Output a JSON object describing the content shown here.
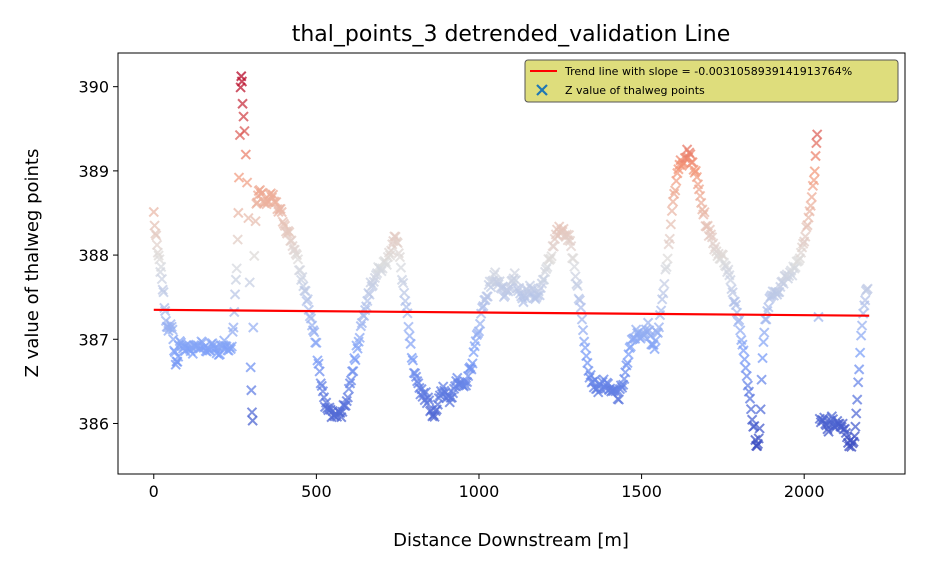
{
  "chart_data": {
    "type": "scatter",
    "title": "thal_points_3 detrended_validation Line",
    "xlabel": "Distance Downstream [m]",
    "ylabel": "Z value of thalweg points",
    "xlim": [
      -110,
      2310
    ],
    "ylim": [
      385.4,
      390.4
    ],
    "xticks": [
      {
        "value": 0,
        "label": "0"
      },
      {
        "value": 500,
        "label": "500"
      },
      {
        "value": 1000,
        "label": "1000"
      },
      {
        "value": 1500,
        "label": "1500"
      },
      {
        "value": 2000,
        "label": "2000"
      }
    ],
    "yticks": [
      {
        "value": 386,
        "label": "386"
      },
      {
        "value": 387,
        "label": "387"
      },
      {
        "value": 388,
        "label": "388"
      },
      {
        "value": 389,
        "label": "389"
      },
      {
        "value": 390,
        "label": "390"
      }
    ],
    "grid": false,
    "legend": {
      "position": "top-right",
      "background": "#dedd7c",
      "entries": [
        {
          "label": "Trend line with slope = -0.0031058939141913764%",
          "marker": "line",
          "color": "#ff0000"
        },
        {
          "label": "Z value of thalweg points",
          "marker": "x",
          "color": "#1f77b4"
        }
      ]
    },
    "colormap": {
      "name": "coolwarm",
      "vmin": 385.7,
      "vmax": 390.15
    },
    "trend_line": {
      "color": "#ff0000",
      "x": [
        0,
        2200
      ],
      "y": [
        387.35,
        387.28
      ]
    },
    "profile_points": [
      [
        0,
        388.5
      ],
      [
        5,
        388.25
      ],
      [
        10,
        388.1
      ],
      [
        15,
        387.95
      ],
      [
        20,
        387.85
      ],
      [
        25,
        387.75
      ],
      [
        30,
        387.5
      ],
      [
        35,
        387.35
      ],
      [
        40,
        387.2
      ],
      [
        45,
        387.05
      ],
      [
        55,
        387.2
      ],
      [
        60,
        387.0
      ],
      [
        65,
        386.8
      ],
      [
        70,
        386.7
      ],
      [
        75,
        386.85
      ],
      [
        80,
        386.95
      ],
      [
        90,
        386.85
      ],
      [
        100,
        386.95
      ],
      [
        110,
        386.9
      ],
      [
        120,
        386.85
      ],
      [
        130,
        386.95
      ],
      [
        140,
        386.9
      ],
      [
        150,
        386.95
      ],
      [
        160,
        386.85
      ],
      [
        170,
        386.9
      ],
      [
        180,
        386.95
      ],
      [
        190,
        386.9
      ],
      [
        200,
        386.85
      ],
      [
        210,
        386.9
      ],
      [
        220,
        386.95
      ],
      [
        230,
        386.85
      ],
      [
        240,
        386.95
      ],
      [
        245,
        387.2
      ],
      [
        250,
        387.5
      ],
      [
        255,
        387.85
      ],
      [
        258,
        388.2
      ],
      [
        260,
        388.5
      ],
      [
        262,
        388.95
      ],
      [
        265,
        389.45
      ],
      [
        267,
        389.95
      ],
      [
        269,
        390.15
      ],
      [
        271,
        390.05
      ],
      [
        273,
        389.85
      ],
      [
        276,
        389.6
      ],
      [
        279,
        389.45
      ],
      [
        283,
        389.2
      ],
      [
        287,
        388.9
      ],
      [
        291,
        388.4
      ],
      [
        295,
        387.7
      ],
      [
        298,
        386.7
      ],
      [
        300,
        386.4
      ],
      [
        302,
        386.1
      ],
      [
        304,
        386.05
      ],
      [
        306,
        387.2
      ],
      [
        309,
        388.0
      ],
      [
        313,
        388.45
      ],
      [
        318,
        388.65
      ],
      [
        323,
        388.75
      ],
      [
        330,
        388.7
      ],
      [
        340,
        388.65
      ],
      [
        350,
        388.6
      ],
      [
        360,
        388.7
      ],
      [
        370,
        388.65
      ],
      [
        380,
        388.55
      ],
      [
        390,
        388.5
      ],
      [
        400,
        388.4
      ],
      [
        410,
        388.3
      ],
      [
        420,
        388.2
      ],
      [
        430,
        388.1
      ],
      [
        440,
        387.95
      ],
      [
        450,
        387.8
      ],
      [
        460,
        387.65
      ],
      [
        470,
        387.5
      ],
      [
        480,
        387.3
      ],
      [
        490,
        387.1
      ],
      [
        500,
        386.9
      ],
      [
        510,
        386.6
      ],
      [
        520,
        386.35
      ],
      [
        530,
        386.2
      ],
      [
        540,
        386.15
      ],
      [
        550,
        386.1
      ],
      [
        560,
        386.15
      ],
      [
        570,
        386.1
      ],
      [
        580,
        386.15
      ],
      [
        590,
        386.25
      ],
      [
        600,
        386.4
      ],
      [
        610,
        386.6
      ],
      [
        620,
        386.8
      ],
      [
        630,
        387.0
      ],
      [
        640,
        387.2
      ],
      [
        650,
        387.4
      ],
      [
        660,
        387.55
      ],
      [
        670,
        387.65
      ],
      [
        680,
        387.75
      ],
      [
        690,
        387.8
      ],
      [
        700,
        387.85
      ],
      [
        710,
        387.9
      ],
      [
        720,
        387.95
      ],
      [
        730,
        388.1
      ],
      [
        740,
        388.25
      ],
      [
        750,
        388.1
      ],
      [
        760,
        387.85
      ],
      [
        770,
        387.55
      ],
      [
        780,
        387.25
      ],
      [
        790,
        386.9
      ],
      [
        800,
        386.6
      ],
      [
        810,
        386.45
      ],
      [
        820,
        386.4
      ],
      [
        830,
        386.35
      ],
      [
        840,
        386.3
      ],
      [
        850,
        386.2
      ],
      [
        860,
        386.1
      ],
      [
        870,
        386.2
      ],
      [
        880,
        386.3
      ],
      [
        890,
        386.4
      ],
      [
        900,
        386.35
      ],
      [
        910,
        386.3
      ],
      [
        920,
        386.4
      ],
      [
        930,
        386.5
      ],
      [
        940,
        386.45
      ],
      [
        950,
        386.4
      ],
      [
        960,
        386.5
      ],
      [
        970,
        386.6
      ],
      [
        980,
        386.75
      ],
      [
        990,
        386.95
      ],
      [
        1000,
        387.15
      ],
      [
        1010,
        387.35
      ],
      [
        1020,
        387.5
      ],
      [
        1030,
        387.6
      ],
      [
        1040,
        387.7
      ],
      [
        1050,
        387.75
      ],
      [
        1060,
        387.7
      ],
      [
        1070,
        387.6
      ],
      [
        1080,
        387.5
      ],
      [
        1090,
        387.55
      ],
      [
        1100,
        387.65
      ],
      [
        1110,
        387.75
      ],
      [
        1120,
        387.6
      ],
      [
        1130,
        387.45
      ],
      [
        1140,
        387.5
      ],
      [
        1150,
        387.55
      ],
      [
        1160,
        387.6
      ],
      [
        1170,
        387.55
      ],
      [
        1180,
        387.5
      ],
      [
        1190,
        387.6
      ],
      [
        1200,
        387.75
      ],
      [
        1210,
        387.9
      ],
      [
        1220,
        388.0
      ],
      [
        1230,
        388.1
      ],
      [
        1240,
        388.25
      ],
      [
        1250,
        388.3
      ],
      [
        1260,
        388.3
      ],
      [
        1270,
        388.25
      ],
      [
        1280,
        388.15
      ],
      [
        1290,
        387.95
      ],
      [
        1300,
        387.7
      ],
      [
        1310,
        387.45
      ],
      [
        1320,
        387.1
      ],
      [
        1330,
        386.85
      ],
      [
        1340,
        386.6
      ],
      [
        1350,
        386.5
      ],
      [
        1360,
        386.45
      ],
      [
        1370,
        386.4
      ],
      [
        1380,
        386.5
      ],
      [
        1390,
        386.45
      ],
      [
        1400,
        386.4
      ],
      [
        1410,
        386.35
      ],
      [
        1420,
        386.4
      ],
      [
        1430,
        386.3
      ],
      [
        1440,
        386.45
      ],
      [
        1450,
        386.6
      ],
      [
        1460,
        386.8
      ],
      [
        1470,
        386.95
      ],
      [
        1480,
        387.05
      ],
      [
        1490,
        387.1
      ],
      [
        1500,
        387.0
      ],
      [
        1510,
        387.05
      ],
      [
        1520,
        387.15
      ],
      [
        1530,
        387.0
      ],
      [
        1540,
        386.9
      ],
      [
        1550,
        387.1
      ],
      [
        1560,
        387.4
      ],
      [
        1570,
        387.7
      ],
      [
        1580,
        388.0
      ],
      [
        1590,
        388.35
      ],
      [
        1600,
        388.7
      ],
      [
        1610,
        388.95
      ],
      [
        1620,
        389.1
      ],
      [
        1630,
        389.15
      ],
      [
        1640,
        389.2
      ],
      [
        1650,
        389.15
      ],
      [
        1660,
        389.05
      ],
      [
        1670,
        388.9
      ],
      [
        1680,
        388.7
      ],
      [
        1690,
        388.5
      ],
      [
        1700,
        388.35
      ],
      [
        1710,
        388.25
      ],
      [
        1720,
        388.15
      ],
      [
        1730,
        388.05
      ],
      [
        1740,
        388.0
      ],
      [
        1750,
        387.95
      ],
      [
        1760,
        387.9
      ],
      [
        1770,
        387.75
      ],
      [
        1780,
        387.55
      ],
      [
        1790,
        387.4
      ],
      [
        1800,
        387.2
      ],
      [
        1810,
        386.95
      ],
      [
        1820,
        386.7
      ],
      [
        1830,
        386.35
      ],
      [
        1840,
        386.05
      ],
      [
        1850,
        385.85
      ],
      [
        1855,
        385.7
      ],
      [
        1860,
        385.8
      ],
      [
        1866,
        386.2
      ],
      [
        1872,
        386.8
      ],
      [
        1880,
        387.2
      ],
      [
        1890,
        387.4
      ],
      [
        1900,
        387.5
      ],
      [
        1910,
        387.55
      ],
      [
        1920,
        387.6
      ],
      [
        1930,
        387.65
      ],
      [
        1940,
        387.7
      ],
      [
        1950,
        387.75
      ],
      [
        1960,
        387.8
      ],
      [
        1970,
        387.85
      ],
      [
        1980,
        387.95
      ],
      [
        1990,
        388.05
      ],
      [
        2000,
        388.2
      ],
      [
        2010,
        388.4
      ],
      [
        2020,
        388.6
      ],
      [
        2030,
        388.9
      ],
      [
        2035,
        389.15
      ],
      [
        2040,
        389.4
      ],
      [
        2044,
        387.3
      ],
      [
        2048,
        386.05
      ],
      [
        2055,
        386.0
      ],
      [
        2065,
        386.05
      ],
      [
        2075,
        385.95
      ],
      [
        2085,
        386.05
      ],
      [
        2095,
        385.95
      ],
      [
        2105,
        386.05
      ],
      [
        2115,
        386.0
      ],
      [
        2125,
        385.9
      ],
      [
        2135,
        385.8
      ],
      [
        2145,
        385.75
      ],
      [
        2155,
        385.85
      ],
      [
        2160,
        386.1
      ],
      [
        2166,
        386.5
      ],
      [
        2172,
        386.9
      ],
      [
        2178,
        387.2
      ],
      [
        2185,
        387.4
      ],
      [
        2190,
        387.55
      ],
      [
        2195,
        387.6
      ]
    ]
  }
}
